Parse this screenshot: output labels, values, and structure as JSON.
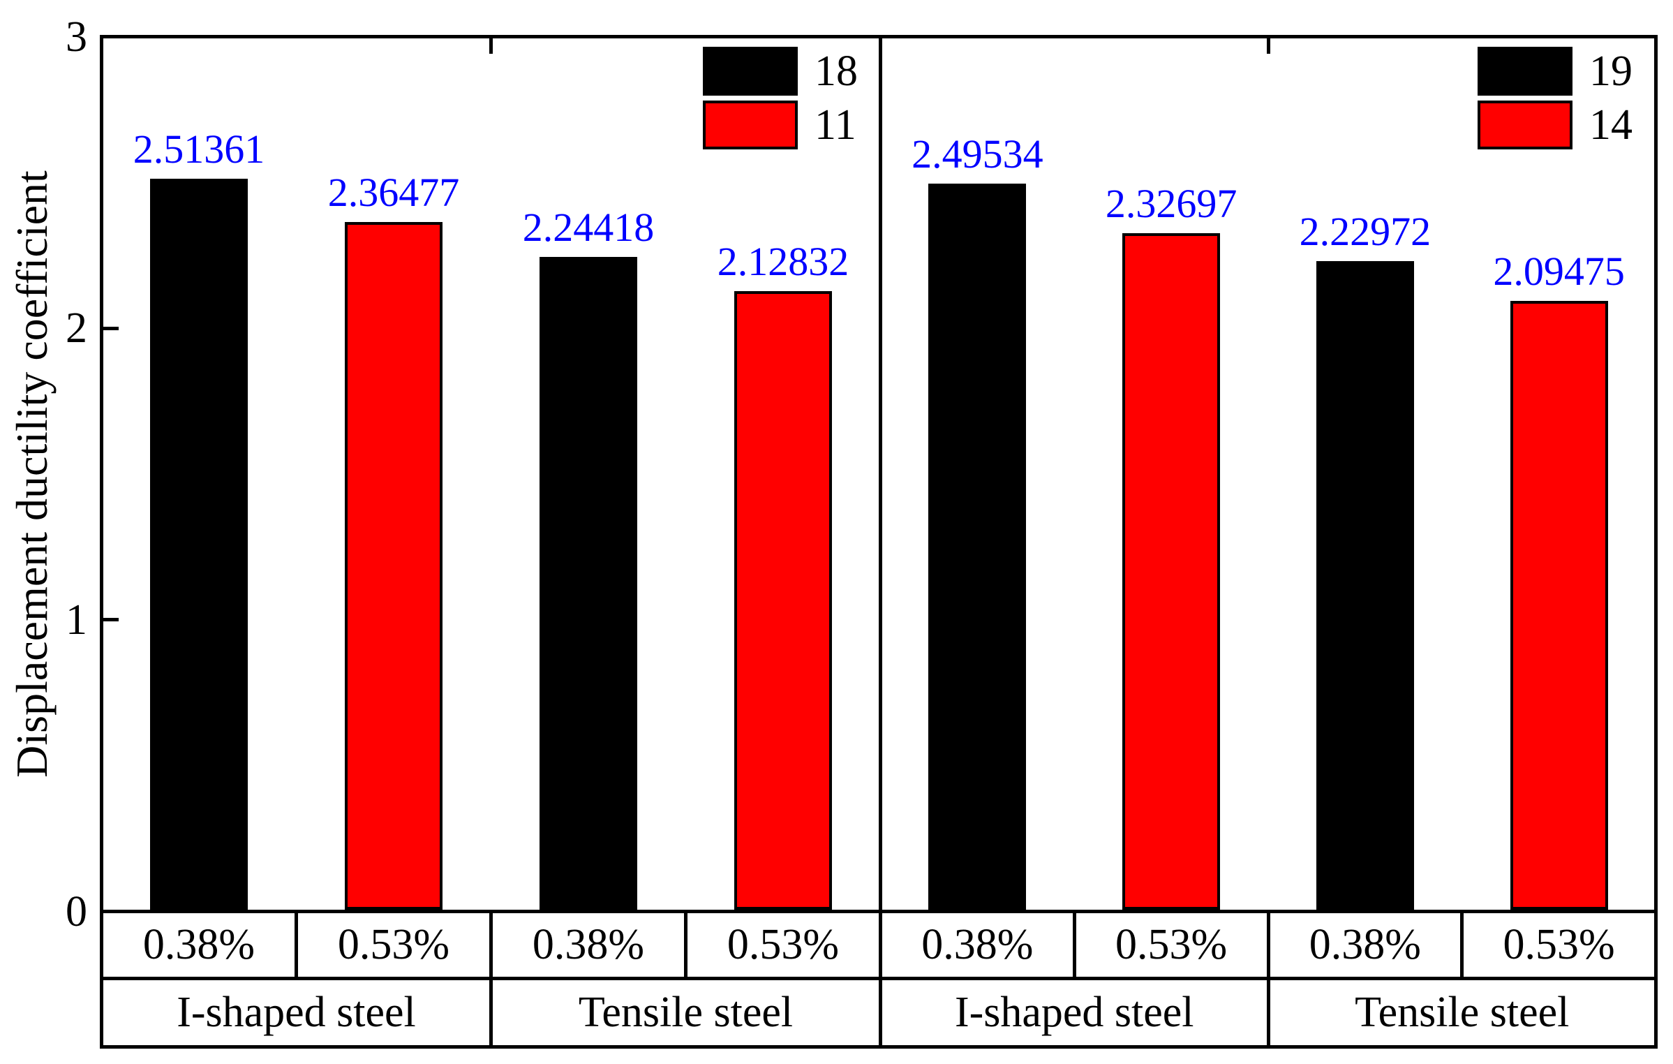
{
  "chart_data": {
    "type": "bar",
    "title": "",
    "xlabel": "",
    "ylabel": "Displacement ductility coefficient",
    "ylim": [
      0,
      3
    ],
    "yticks": [
      "0",
      "1",
      "2",
      "3"
    ],
    "grid": false,
    "legend_position": "top-right-inside-each-panel",
    "colors": {
      "series_black": "#000000",
      "series_red": "#ff0000",
      "value_label": "#0000ff",
      "axis": "#000000",
      "background": "#ffffff"
    },
    "category_axis": {
      "sub_labels": [
        "0.38%",
        "0.53%",
        "0.38%",
        "0.53%",
        "0.38%",
        "0.53%",
        "0.38%",
        "0.53%"
      ],
      "group_labels": [
        "I-shaped steel",
        "Tensile steel",
        "I-shaped steel",
        "Tensile steel"
      ]
    },
    "panels": [
      {
        "legend": [
          {
            "label": "18",
            "color": "#000000"
          },
          {
            "label": "11",
            "color": "#ff0000"
          }
        ],
        "groups": [
          {
            "label": "I-shaped steel",
            "bars": [
              {
                "category": "0.38%",
                "series": "18",
                "color": "#000000",
                "value": 2.51361,
                "value_label": "2.51361"
              },
              {
                "category": "0.53%",
                "series": "11",
                "color": "#ff0000",
                "value": 2.36477,
                "value_label": "2.36477"
              }
            ]
          },
          {
            "label": "Tensile steel",
            "bars": [
              {
                "category": "0.38%",
                "series": "18",
                "color": "#000000",
                "value": 2.24418,
                "value_label": "2.24418"
              },
              {
                "category": "0.53%",
                "series": "11",
                "color": "#ff0000",
                "value": 2.12832,
                "value_label": "2.12832"
              }
            ]
          }
        ]
      },
      {
        "legend": [
          {
            "label": "19",
            "color": "#000000"
          },
          {
            "label": "14",
            "color": "#ff0000"
          }
        ],
        "groups": [
          {
            "label": "I-shaped steel",
            "bars": [
              {
                "category": "0.38%",
                "series": "19",
                "color": "#000000",
                "value": 2.49534,
                "value_label": "2.49534"
              },
              {
                "category": "0.53%",
                "series": "14",
                "color": "#ff0000",
                "value": 2.32697,
                "value_label": "2.32697"
              }
            ]
          },
          {
            "label": "Tensile steel",
            "bars": [
              {
                "category": "0.38%",
                "series": "19",
                "color": "#000000",
                "value": 2.22972,
                "value_label": "2.22972"
              },
              {
                "category": "0.53%",
                "series": "14",
                "color": "#ff0000",
                "value": 2.09475,
                "value_label": "2.09475"
              }
            ]
          }
        ]
      }
    ]
  }
}
